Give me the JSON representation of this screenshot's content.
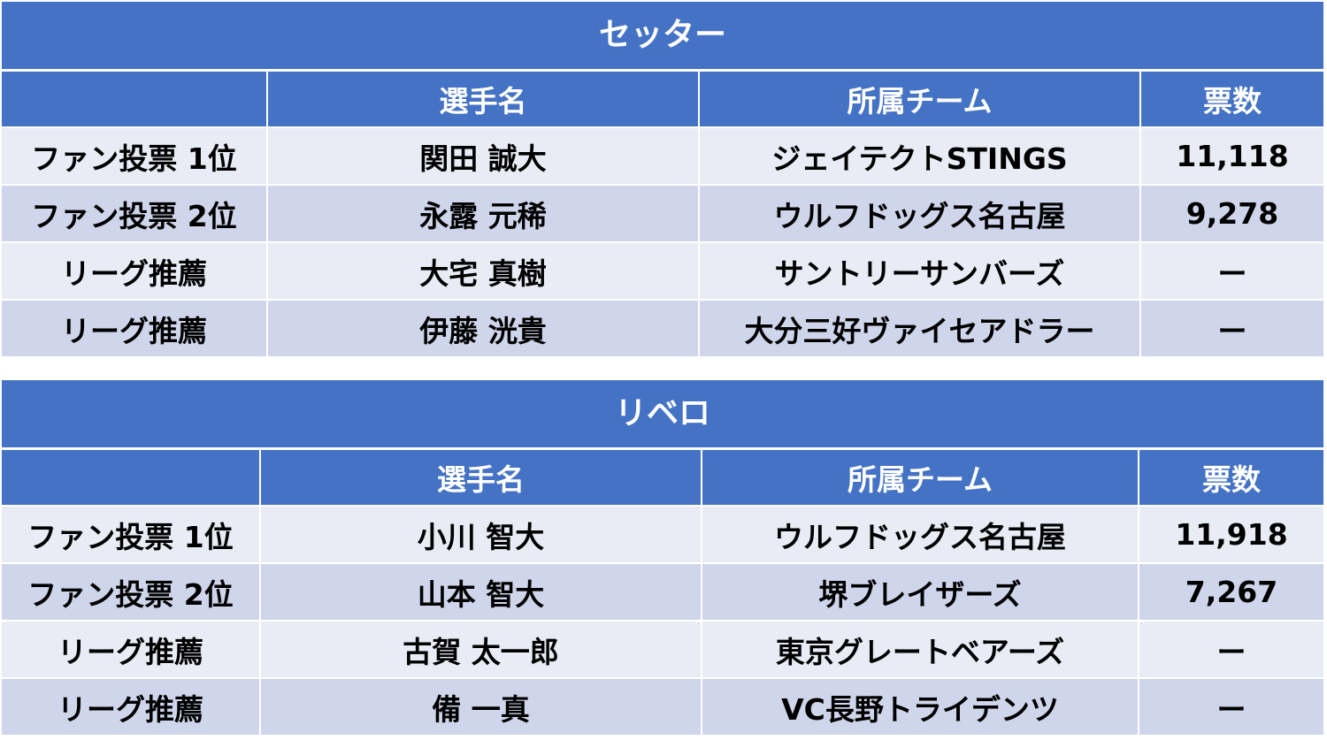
{
  "tables": [
    {
      "title": "セッター",
      "headers": [
        "",
        "選手名",
        "所属チーム",
        "票数"
      ],
      "rows": [
        [
          "ファン投票 1位",
          "関田 誠大",
          "ジェイテクトSTINGS",
          "11,118"
        ],
        [
          "ファン投票 2位",
          "永露 元稀",
          "ウルフドッグス名古屋",
          "9,278"
        ],
        [
          "リーグ推薦",
          "大宅 真樹",
          "サントリーサンバーズ",
          "ー"
        ],
        [
          "リーグ推薦",
          "伊藤 洸貴",
          "大分三好ヴァイセアドラー",
          "ー"
        ]
      ]
    },
    {
      "title": "リベロ",
      "headers": [
        "",
        "選手名",
        "所属チーム",
        "票数"
      ],
      "rows": [
        [
          "ファン投票 1位",
          "小川 智大",
          "ウルフドッグス名古屋",
          "11,918"
        ],
        [
          "ファン投票 2位",
          "山本 智大",
          "堺ブレイザーズ",
          "7,267"
        ],
        [
          "リーグ推薦",
          "古賀 太一郎",
          "東京グレートベアーズ",
          "ー"
        ],
        [
          "リーグ推薦",
          "備 一真",
          "VC長野トライデンツ",
          "ー"
        ]
      ]
    }
  ],
  "colors": {
    "header_blue": "#4472c4",
    "row_light": "#e9ebf5",
    "row_dark": "#cfd5ea"
  }
}
